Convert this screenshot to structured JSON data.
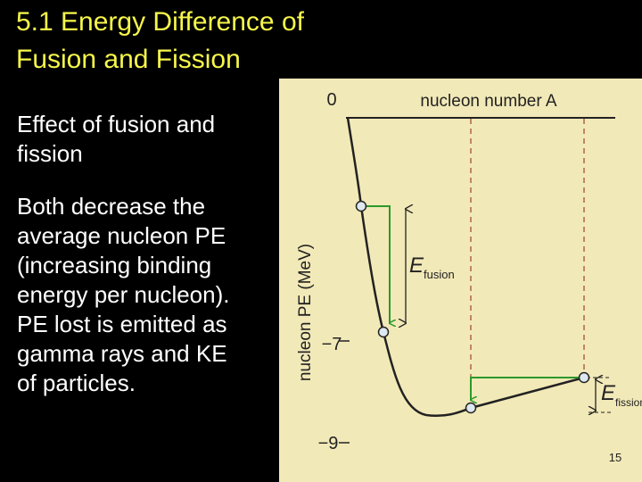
{
  "header": {
    "title": [
      "5.1 Energy Difference of",
      "Fusion and Fission"
    ]
  },
  "body": [
    {
      "lines": [
        "Effect of fusion and",
        "fission"
      ]
    },
    {
      "lines": [
        "Both decrease the",
        "average nucleon PE",
        "(increasing binding",
        "energy per nucleon).",
        "PE lost is emitted as",
        "gamma rays and KE",
        "of particles."
      ]
    }
  ],
  "figure": {
    "y_axis_label": "nucleon PE (MeV)",
    "x_axis_label": "nucleon number A",
    "y_ticks": [
      "0",
      "−7",
      "−9"
    ],
    "fusion_label": {
      "symbol": "E",
      "subscript": "fusion"
    },
    "fission_label": {
      "symbol": "E",
      "subscript": "fission"
    }
  },
  "slide_number": "15"
}
